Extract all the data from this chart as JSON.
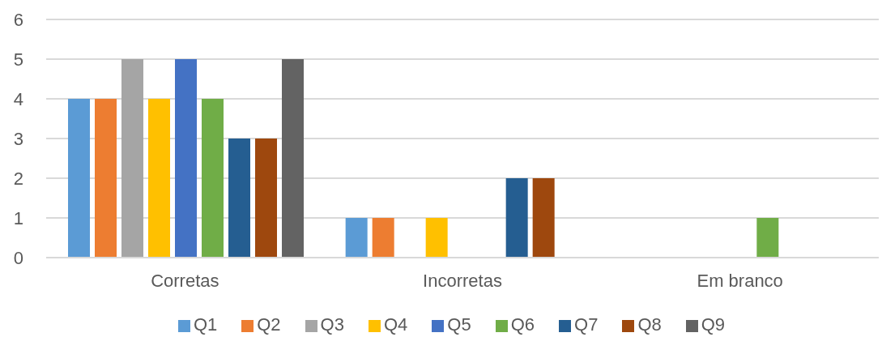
{
  "chart_data": {
    "type": "bar",
    "categories": [
      "Corretas",
      "Incorretas",
      "Em branco"
    ],
    "series": [
      {
        "name": "Q1",
        "color": "#5b9bd5",
        "values": [
          4,
          1,
          0
        ]
      },
      {
        "name": "Q2",
        "color": "#ed7d31",
        "values": [
          4,
          1,
          0
        ]
      },
      {
        "name": "Q3",
        "color": "#a5a5a5",
        "values": [
          5,
          0,
          0
        ]
      },
      {
        "name": "Q4",
        "color": "#ffc000",
        "values": [
          4,
          1,
          0
        ]
      },
      {
        "name": "Q5",
        "color": "#4472c4",
        "values": [
          5,
          0,
          0
        ]
      },
      {
        "name": "Q6",
        "color": "#70ad47",
        "values": [
          4,
          0,
          1
        ]
      },
      {
        "name": "Q7",
        "color": "#255e91",
        "values": [
          3,
          2,
          0
        ]
      },
      {
        "name": "Q8",
        "color": "#9e480e",
        "values": [
          3,
          2,
          0
        ]
      },
      {
        "name": "Q9",
        "color": "#636363",
        "values": [
          5,
          0,
          0
        ]
      }
    ],
    "ylim": [
      0,
      6
    ],
    "yticks": [
      0,
      1,
      2,
      3,
      4,
      5,
      6
    ],
    "grid": "y",
    "legend": "bottom"
  }
}
